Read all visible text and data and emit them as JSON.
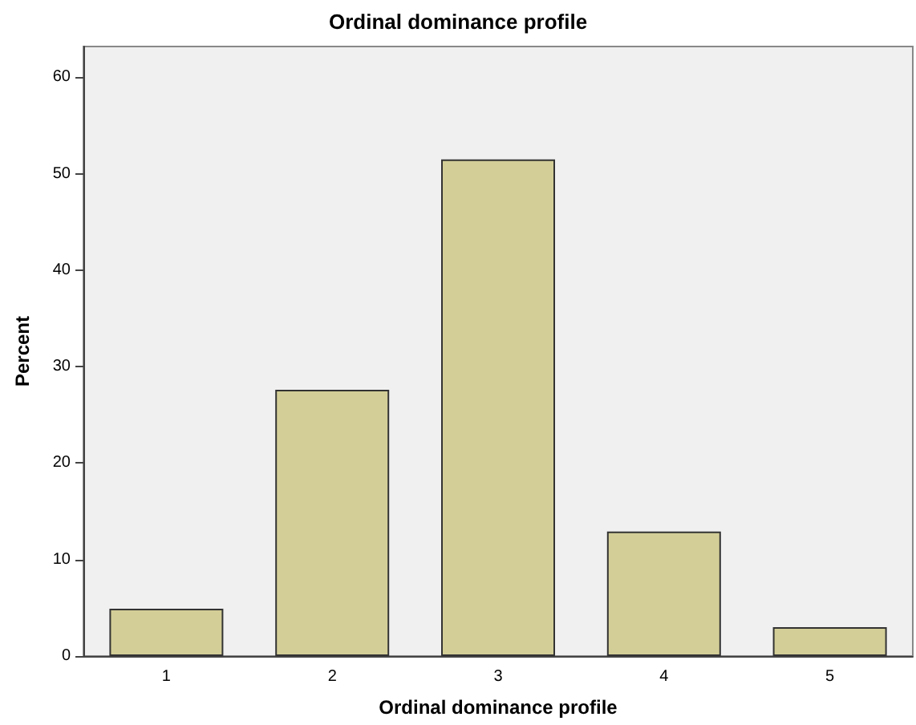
{
  "chart_data": {
    "type": "bar",
    "title": "Ordinal dominance profile",
    "xlabel": "Ordinal dominance profile",
    "ylabel": "Percent",
    "categories": [
      "1",
      "2",
      "3",
      "4",
      "5"
    ],
    "values": [
      4.9,
      27.6,
      51.5,
      12.9,
      3.0
    ],
    "color": "#d3ce97",
    "ylim": [
      0,
      63.2
    ],
    "yticks": [
      0,
      10,
      20,
      30,
      40,
      50,
      60
    ],
    "grid": false
  }
}
